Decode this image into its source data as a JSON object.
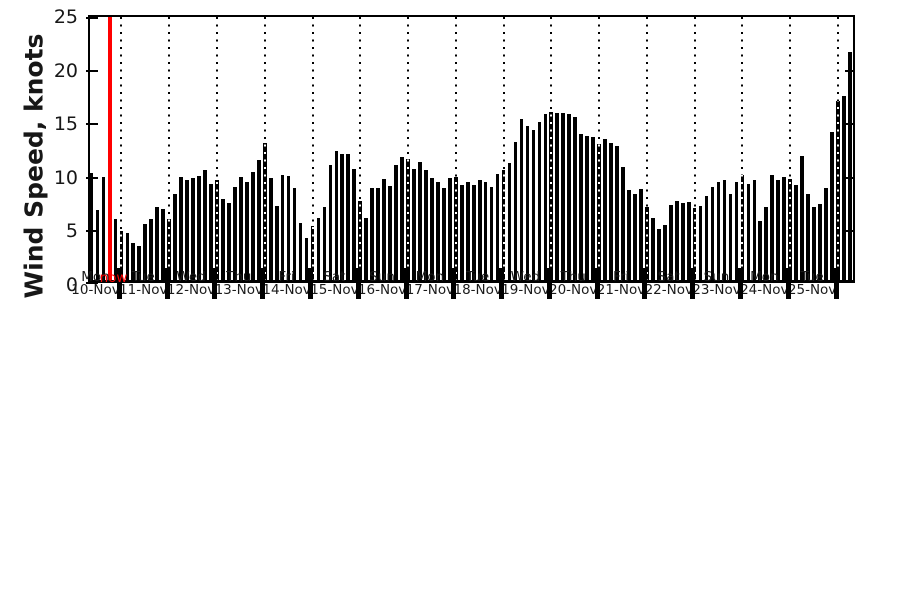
{
  "chart_data": {
    "type": "bar",
    "title": "",
    "ylabel": "Wind Speed, knots",
    "xlabel": "",
    "ylim": [
      0,
      25
    ],
    "yticks": [
      0,
      5,
      10,
      15,
      20,
      25
    ],
    "bar_color": "#000000",
    "grid": "dotted vertical line at each day boundary",
    "legend": "none",
    "units": "knots",
    "bar_interval_hours": 3,
    "now_marker": {
      "label": "now",
      "color": "#ff0000",
      "day_index": 0,
      "slot": 6
    },
    "days": [
      {
        "dow": "Mon",
        "date": "10-Nov",
        "slots": [
          3,
          4,
          5,
          7
        ],
        "values": [
          10.0,
          6.5,
          9.6,
          5.7
        ]
      },
      {
        "dow": "Tue",
        "date": "11-Nov",
        "values": [
          4.6,
          4.4,
          3.5,
          3.2,
          5.2,
          5.7,
          6.8,
          6.6
        ]
      },
      {
        "dow": "Wed",
        "date": "12-Nov",
        "values": [
          5.7,
          8.0,
          9.6,
          9.3,
          9.5,
          9.7,
          10.3,
          9.0
        ]
      },
      {
        "dow": "Thu",
        "date": "13-Nov",
        "values": [
          9.3,
          7.6,
          7.2,
          8.7,
          9.6,
          9.1,
          10.1,
          11.2
        ]
      },
      {
        "dow": "Fri",
        "date": "14-Nov",
        "values": [
          12.8,
          9.5,
          6.9,
          9.8,
          9.7,
          8.6,
          5.3,
          3.9
        ]
      },
      {
        "dow": "Sat",
        "date": "15-Nov",
        "values": [
          5.0,
          5.8,
          6.8,
          10.7,
          12.0,
          11.8,
          11.8,
          10.4
        ]
      },
      {
        "dow": "Sun",
        "date": "16-Nov",
        "values": [
          7.4,
          5.8,
          8.6,
          8.6,
          9.4,
          8.8,
          10.7,
          11.5
        ]
      },
      {
        "dow": "Mon",
        "date": "17-Nov",
        "values": [
          11.3,
          10.4,
          11.0,
          10.3,
          9.5,
          9.1,
          8.6,
          9.5
        ]
      },
      {
        "dow": "Tue",
        "date": "18-Nov",
        "values": [
          9.6,
          8.9,
          9.1,
          8.9,
          9.3,
          9.1,
          8.7,
          9.9
        ]
      },
      {
        "dow": "Wed",
        "date": "19-Nov",
        "values": [
          10.3,
          10.9,
          12.9,
          15.0,
          14.4,
          14.0,
          14.7,
          15.5
        ]
      },
      {
        "dow": "Thu",
        "date": "20-Nov",
        "values": [
          15.7,
          15.6,
          15.6,
          15.5,
          15.2,
          13.6,
          13.4,
          13.3
        ]
      },
      {
        "dow": "Fri",
        "date": "21-Nov",
        "values": [
          12.7,
          13.2,
          12.8,
          12.5,
          10.5,
          8.4,
          8.0,
          8.5
        ]
      },
      {
        "dow": "Sat",
        "date": "22-Nov",
        "values": [
          6.8,
          5.8,
          4.8,
          5.1,
          7.0,
          7.4,
          7.2,
          7.3
        ]
      },
      {
        "dow": "Sun",
        "date": "23-Nov",
        "values": [
          6.7,
          6.9,
          7.8,
          8.7,
          9.1,
          9.3,
          8.0,
          9.1
        ]
      },
      {
        "dow": "Mon",
        "date": "24-Nov",
        "values": [
          9.8,
          9.0,
          9.3,
          5.5,
          6.8,
          9.8,
          9.3,
          9.6
        ]
      },
      {
        "dow": "Tue",
        "date": "25-Nov",
        "values": [
          9.4,
          8.9,
          11.6,
          8.0,
          6.8,
          7.1,
          8.6,
          13.8
        ]
      },
      {
        "dow": "",
        "date": "",
        "slots": [
          0,
          1,
          2
        ],
        "values": [
          16.7,
          17.2,
          21.3
        ]
      }
    ]
  }
}
